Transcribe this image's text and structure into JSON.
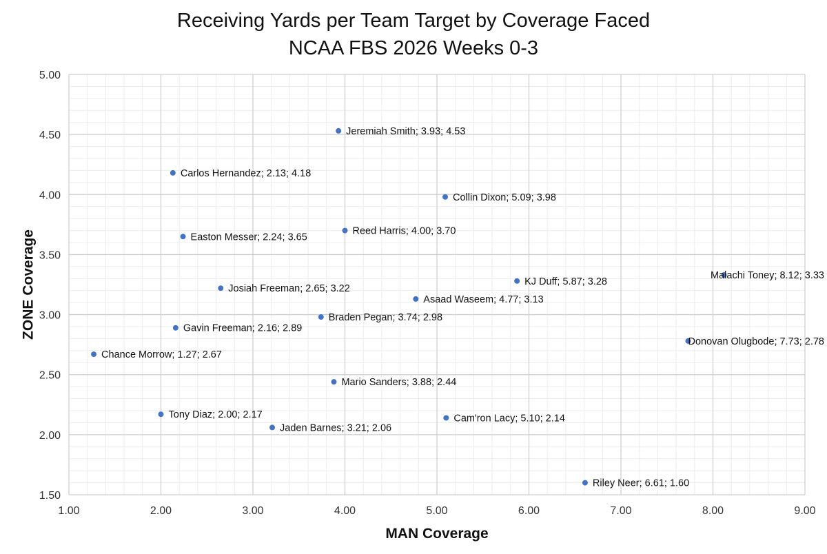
{
  "chart_data": {
    "type": "scatter",
    "title_line1": "Receiving Yards per Team Target by Coverage Faced",
    "title_line2": "NCAA FBS 2026 Weeks 0-3",
    "xlabel": "MAN Coverage",
    "ylabel": "ZONE Coverage",
    "xlim": [
      1.0,
      9.0
    ],
    "ylim": [
      1.5,
      5.0
    ],
    "x_major": 1.0,
    "y_major": 0.5,
    "x_minor": 0.2,
    "y_minor": 0.1,
    "grid": true,
    "marker_color": "#4472C4",
    "x_tick_labels": [
      "1.00",
      "2.00",
      "3.00",
      "4.00",
      "5.00",
      "6.00",
      "7.00",
      "8.00",
      "9.00"
    ],
    "y_tick_labels": [
      "1.50",
      "2.00",
      "2.50",
      "3.00",
      "3.50",
      "4.00",
      "4.50",
      "5.00"
    ],
    "points": [
      {
        "x": 3.93,
        "y": 4.53,
        "label": "Jeremiah Smith; 3.93; 4.53"
      },
      {
        "x": 2.13,
        "y": 4.18,
        "label": "Carlos Hernandez; 2.13; 4.18"
      },
      {
        "x": 5.09,
        "y": 3.98,
        "label": "Collin Dixon; 5.09; 3.98"
      },
      {
        "x": 4.0,
        "y": 3.7,
        "label": "Reed Harris; 4.00; 3.70"
      },
      {
        "x": 2.24,
        "y": 3.65,
        "label": "Easton Messer; 2.24; 3.65"
      },
      {
        "x": 8.12,
        "y": 3.33,
        "label": "Malachi Toney; 8.12; 3.33"
      },
      {
        "x": 5.87,
        "y": 3.28,
        "label": "KJ Duff; 5.87; 3.28"
      },
      {
        "x": 2.65,
        "y": 3.22,
        "label": "Josiah Freeman; 2.65; 3.22"
      },
      {
        "x": 4.77,
        "y": 3.13,
        "label": "Asaad Waseem; 4.77; 3.13"
      },
      {
        "x": 3.74,
        "y": 2.98,
        "label": "Braden Pegan; 3.74; 2.98"
      },
      {
        "x": 2.16,
        "y": 2.89,
        "label": "Gavin Freeman; 2.16; 2.89"
      },
      {
        "x": 7.73,
        "y": 2.78,
        "label": "Donovan Olugbode; 7.73; 2.78"
      },
      {
        "x": 1.27,
        "y": 2.67,
        "label": "Chance Morrow; 1.27; 2.67"
      },
      {
        "x": 3.88,
        "y": 2.44,
        "label": "Mario Sanders; 3.88; 2.44"
      },
      {
        "x": 2.0,
        "y": 2.17,
        "label": "Tony Diaz; 2.00; 2.17"
      },
      {
        "x": 5.1,
        "y": 2.14,
        "label": "Cam'ron Lacy; 5.10; 2.14"
      },
      {
        "x": 3.21,
        "y": 2.06,
        "label": "Jaden Barnes; 3.21; 2.06"
      },
      {
        "x": 6.61,
        "y": 1.6,
        "label": "Riley Neer; 6.61; 1.60"
      }
    ]
  }
}
